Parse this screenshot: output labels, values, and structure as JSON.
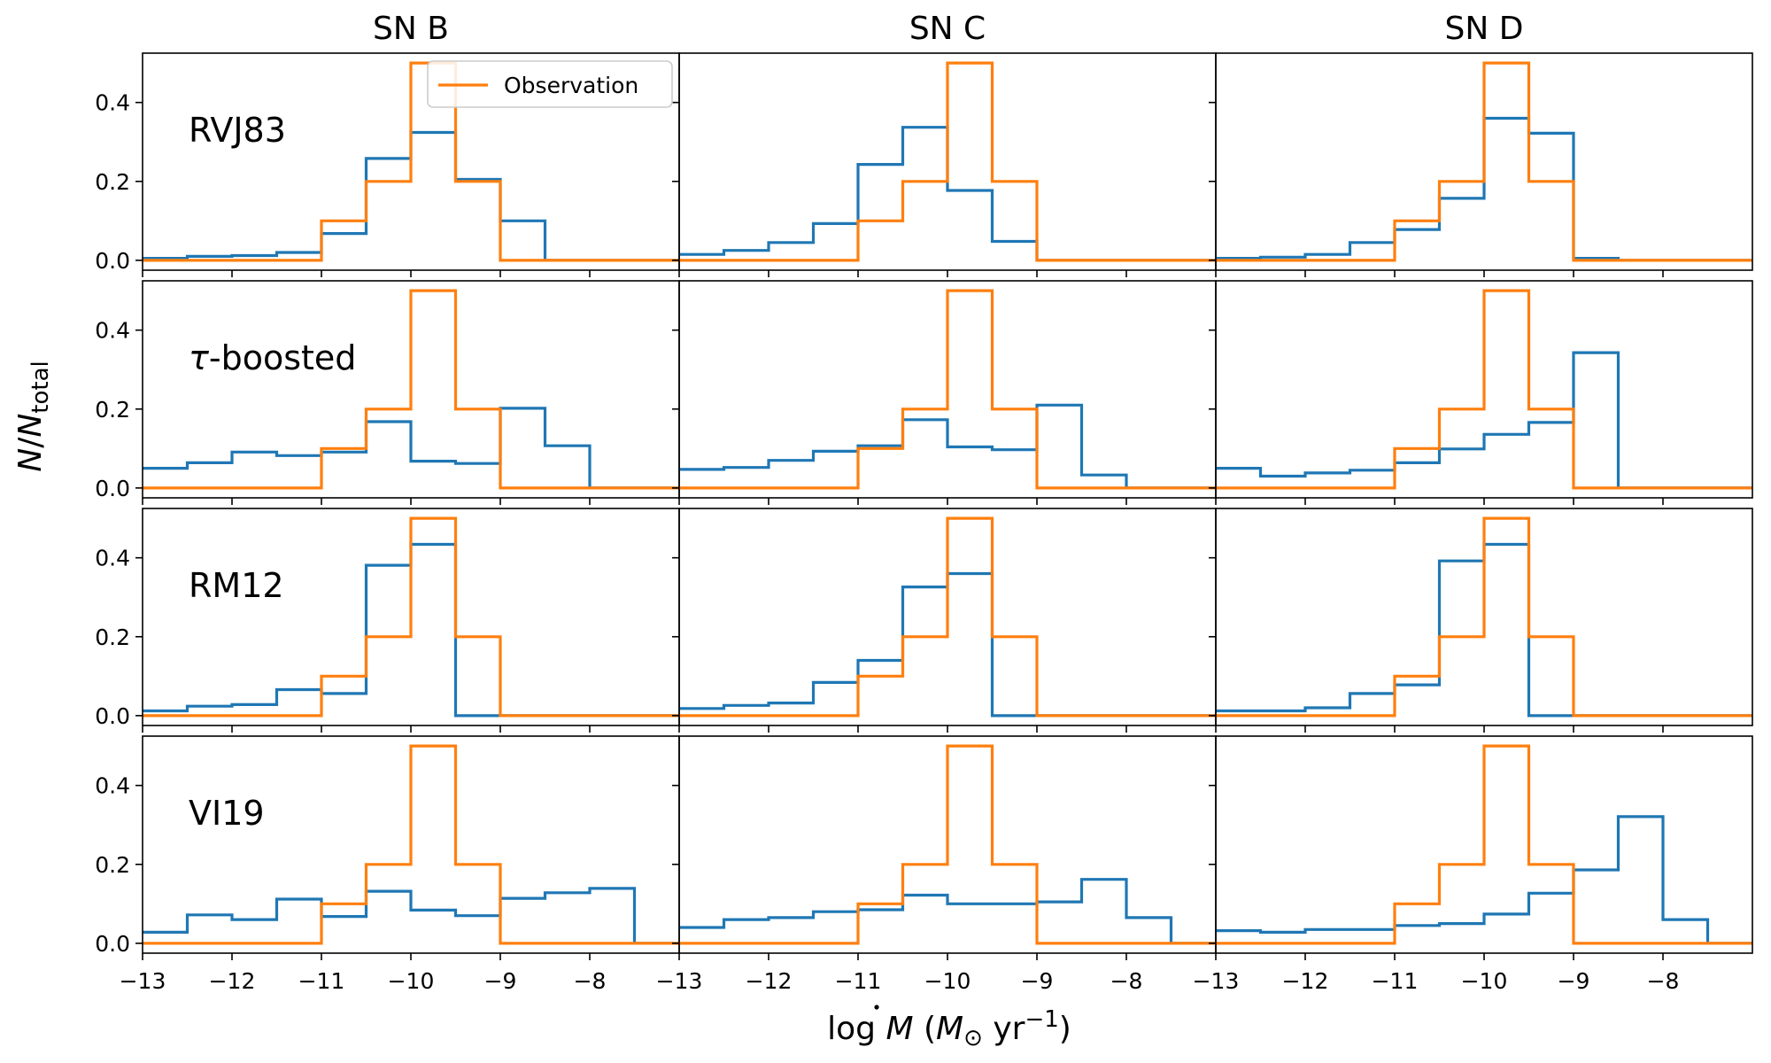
{
  "chart_data": {
    "type": "step-histogram-grid",
    "columns": [
      "SN B",
      "SN C",
      "SN D"
    ],
    "rows": [
      "RVJ83",
      "τ-boosted",
      "RM12",
      "VI19"
    ],
    "xlabel_parts": {
      "prefix": "log ",
      "var": "M",
      "open": " (",
      "unit": "M",
      "sub": "⊙",
      "mid": " yr",
      "sup": "−1",
      "close": ")"
    },
    "ylabel_parts": {
      "var": "N",
      "slash": "/",
      "var2": "N",
      "sub": "total"
    },
    "xlim": [
      -13,
      -7
    ],
    "ylim": [
      -0.025,
      0.525
    ],
    "x_ticks": [
      -13,
      -12,
      -11,
      -10,
      -9,
      -8
    ],
    "x_tick_labels": [
      "−13",
      "−12",
      "−11",
      "−10",
      "−9",
      "−8"
    ],
    "y_ticks": [
      0.0,
      0.2,
      0.4
    ],
    "y_tick_labels": [
      "0.0",
      "0.2",
      "0.4"
    ],
    "bin_edges": [
      -13,
      -12.5,
      -12,
      -11.5,
      -11,
      -10.5,
      -10,
      -9.5,
      -9,
      -8.5,
      -8,
      -7.5,
      -7
    ],
    "colors": {
      "model": "#1f77b4",
      "observation": "#ff7f0e"
    },
    "legend": {
      "label": "Observation",
      "placement": "upper right of first panel"
    },
    "observation": [
      0,
      0,
      0,
      0,
      0.1,
      0.2,
      0.5,
      0.2,
      0,
      0,
      0,
      0
    ],
    "model_values": [
      [
        [
          0.005,
          0.01,
          0.012,
          0.02,
          0.068,
          0.258,
          0.324,
          0.205,
          0.1,
          0,
          0,
          0
        ],
        [
          0.015,
          0.025,
          0.045,
          0.093,
          0.243,
          0.337,
          0.177,
          0.048,
          0,
          0,
          0,
          0
        ],
        [
          0.005,
          0.008,
          0.015,
          0.045,
          0.078,
          0.157,
          0.36,
          0.322,
          0.005,
          0,
          0,
          0
        ]
      ],
      [
        [
          0.05,
          0.064,
          0.091,
          0.082,
          0.091,
          0.168,
          0.068,
          0.062,
          0.202,
          0.107,
          0,
          0
        ],
        [
          0.047,
          0.052,
          0.07,
          0.093,
          0.107,
          0.173,
          0.104,
          0.097,
          0.21,
          0.033,
          0,
          0
        ],
        [
          0.05,
          0.03,
          0.038,
          0.045,
          0.064,
          0.099,
          0.136,
          0.166,
          0.343,
          0,
          0,
          0
        ]
      ],
      [
        [
          0.012,
          0.024,
          0.028,
          0.066,
          0.056,
          0.381,
          0.434,
          0,
          0,
          0,
          0,
          0
        ],
        [
          0.018,
          0.026,
          0.032,
          0.084,
          0.14,
          0.326,
          0.36,
          0,
          0,
          0,
          0,
          0
        ],
        [
          0.012,
          0.012,
          0.02,
          0.056,
          0.078,
          0.392,
          0.434,
          0,
          0,
          0,
          0,
          0
        ]
      ],
      [
        [
          0.028,
          0.072,
          0.06,
          0.112,
          0.068,
          0.132,
          0.084,
          0.07,
          0.114,
          0.128,
          0.139,
          0
        ],
        [
          0.04,
          0.06,
          0.065,
          0.08,
          0.085,
          0.122,
          0.1,
          0.1,
          0.105,
          0.162,
          0.065,
          0
        ],
        [
          0.032,
          0.028,
          0.035,
          0.035,
          0.045,
          0.05,
          0.074,
          0.127,
          0.186,
          0.321,
          0.06,
          0
        ]
      ]
    ]
  }
}
